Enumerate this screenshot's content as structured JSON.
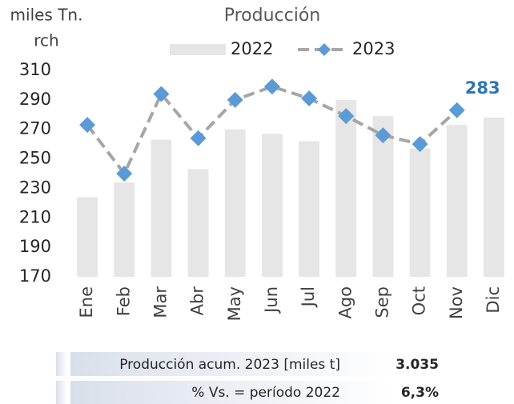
{
  "chart_data": {
    "type": "bar_line",
    "title": "Producción",
    "y_label": [
      "miles Tn.",
      "rch"
    ],
    "categories": [
      "Ene",
      "Feb",
      "Mar",
      "Abr",
      "May",
      "Jun",
      "Jul",
      "Ago",
      "Sep",
      "Oct",
      "Nov",
      "Dic"
    ],
    "series": [
      {
        "name": "2022",
        "type": "bar",
        "color": "#e6e6e6",
        "values": [
          224,
          234,
          263,
          243,
          270,
          267,
          262,
          290,
          279,
          257,
          273,
          278
        ]
      },
      {
        "name": "2023",
        "type": "line",
        "color": "#a6a6a6",
        "marker_color": "#5b9bd5",
        "values": [
          273,
          240,
          294,
          264,
          290,
          299,
          291,
          279,
          266,
          260,
          283,
          null
        ]
      }
    ],
    "ylim": [
      170,
      310
    ],
    "yticks": [
      170,
      190,
      210,
      230,
      250,
      270,
      290,
      310
    ],
    "grid": false
  },
  "table": {
    "rows": [
      [
        "Producción acum. 2023 [miles t]",
        "3.035"
      ],
      [
        "% Vs. = período 2022",
        "6,3%"
      ]
    ]
  }
}
